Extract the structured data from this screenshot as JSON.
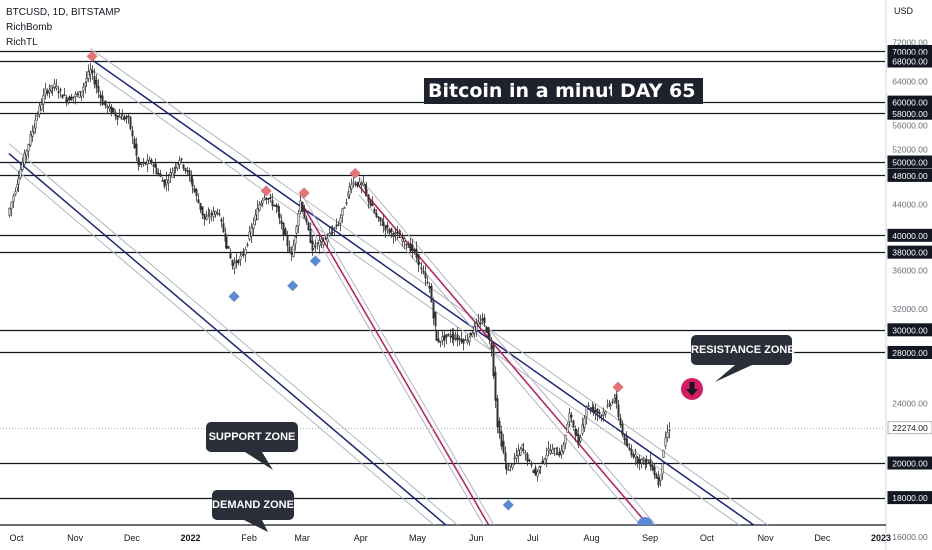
{
  "header": {
    "symbol": "BTCUSD, 1D, BITSTAMP",
    "indicator_1": "RichBomb",
    "indicator_2": "RichTL"
  },
  "annotations": {
    "title": "Bitcoin in a minute",
    "day": "DAY 65",
    "resistance_label": "RESISTANCE ZONE",
    "support_label": "SUPPORT ZONE",
    "demand_label": "DEMAND ZONE"
  },
  "colors": {
    "up_candle": "#333333",
    "down_candle": "#333333",
    "channel_blue": "#1a237e",
    "channel_red": "#c2185b",
    "channel_gray": "#b2b5be",
    "level_line": "#131722",
    "signal_sell": "#e57373",
    "signal_buy": "#5c8bd6",
    "callout_bg": "#2a2e39",
    "resistance_marker": "#d81b60"
  },
  "chart_data": {
    "type": "candlestick",
    "symbol": "BTCUSD",
    "exchange": "BITSTAMP",
    "interval": "1D",
    "price_axis": {
      "unit_label": "USD",
      "scale": "log",
      "range": [
        15000,
        73000
      ],
      "tick_labels": [
        72000,
        70000,
        68000,
        64000,
        60000,
        58000,
        56000,
        52000,
        50000,
        48000,
        44000,
        40000,
        38000,
        36000,
        32000,
        30000,
        28000,
        24000,
        22274,
        20000,
        18000,
        16000
      ]
    },
    "time_axis": {
      "tick_labels": [
        "Oct",
        "Nov",
        "Dec",
        "2022",
        "Feb",
        "Mar",
        "Apr",
        "May",
        "Jun",
        "Jul",
        "Aug",
        "Sep",
        "Oct",
        "Nov",
        "Dec",
        "2023"
      ]
    },
    "last_price": 22274,
    "horizontal_levels": [
      70000,
      68000,
      60000,
      58000,
      50000,
      48000,
      40000,
      38000,
      30000,
      28000,
      20000,
      18000
    ],
    "price_path": [
      {
        "date": "2021-09-27",
        "close": 42500
      },
      {
        "date": "2021-10-03",
        "close": 48000
      },
      {
        "date": "2021-10-10",
        "close": 55000
      },
      {
        "date": "2021-10-17",
        "close": 62000
      },
      {
        "date": "2021-10-22",
        "close": 63000
      },
      {
        "date": "2021-10-28",
        "close": 60500
      },
      {
        "date": "2021-11-04",
        "close": 61500
      },
      {
        "date": "2021-11-10",
        "close": 66000
      },
      {
        "date": "2021-11-16",
        "close": 60000
      },
      {
        "date": "2021-11-24",
        "close": 57500
      },
      {
        "date": "2021-11-30",
        "close": 57000
      },
      {
        "date": "2021-12-05",
        "close": 49500
      },
      {
        "date": "2021-12-12",
        "close": 50000
      },
      {
        "date": "2021-12-19",
        "close": 46800
      },
      {
        "date": "2021-12-27",
        "close": 50500
      },
      {
        "date": "2022-01-02",
        "close": 47300
      },
      {
        "date": "2022-01-09",
        "close": 42000
      },
      {
        "date": "2022-01-16",
        "close": 43100
      },
      {
        "date": "2022-01-24",
        "close": 36500
      },
      {
        "date": "2022-01-30",
        "close": 37800
      },
      {
        "date": "2022-02-07",
        "close": 44000
      },
      {
        "date": "2022-02-10",
        "close": 45200
      },
      {
        "date": "2022-02-16",
        "close": 43500
      },
      {
        "date": "2022-02-24",
        "close": 37500
      },
      {
        "date": "2022-03-01",
        "close": 44400
      },
      {
        "date": "2022-03-07",
        "close": 38500
      },
      {
        "date": "2022-03-14",
        "close": 39500
      },
      {
        "date": "2022-03-21",
        "close": 41500
      },
      {
        "date": "2022-03-28",
        "close": 47100
      },
      {
        "date": "2022-04-03",
        "close": 46500
      },
      {
        "date": "2022-04-10",
        "close": 42200
      },
      {
        "date": "2022-04-17",
        "close": 40500
      },
      {
        "date": "2022-04-24",
        "close": 39500
      },
      {
        "date": "2022-04-30",
        "close": 38000
      },
      {
        "date": "2022-05-08",
        "close": 34000
      },
      {
        "date": "2022-05-12",
        "close": 29000
      },
      {
        "date": "2022-05-19",
        "close": 29500
      },
      {
        "date": "2022-05-27",
        "close": 29000
      },
      {
        "date": "2022-06-05",
        "close": 31000
      },
      {
        "date": "2022-06-10",
        "close": 28500
      },
      {
        "date": "2022-06-13",
        "close": 22500
      },
      {
        "date": "2022-06-18",
        "close": 19500
      },
      {
        "date": "2022-06-26",
        "close": 21000
      },
      {
        "date": "2022-07-03",
        "close": 19300
      },
      {
        "date": "2022-07-10",
        "close": 20800
      },
      {
        "date": "2022-07-17",
        "close": 20600
      },
      {
        "date": "2022-07-21",
        "close": 23200
      },
      {
        "date": "2022-07-26",
        "close": 21200
      },
      {
        "date": "2022-07-30",
        "close": 23800
      },
      {
        "date": "2022-08-07",
        "close": 23200
      },
      {
        "date": "2022-08-14",
        "close": 24400
      },
      {
        "date": "2022-08-19",
        "close": 21300
      },
      {
        "date": "2022-08-26",
        "close": 20200
      },
      {
        "date": "2022-09-02",
        "close": 20000
      },
      {
        "date": "2022-09-06",
        "close": 18800
      },
      {
        "date": "2022-09-10",
        "close": 21600
      },
      {
        "date": "2022-09-12",
        "close": 22274
      }
    ],
    "signals": [
      {
        "type": "sell",
        "date": "2021-11-10",
        "price": 69000
      },
      {
        "type": "buy",
        "date": "2022-01-24",
        "price": 33200
      },
      {
        "type": "sell",
        "date": "2022-02-10",
        "price": 45800
      },
      {
        "type": "buy",
        "date": "2022-02-24",
        "price": 34300
      },
      {
        "type": "sell",
        "date": "2022-03-02",
        "price": 45500
      },
      {
        "type": "buy",
        "date": "2022-03-08",
        "price": 37000
      },
      {
        "type": "sell",
        "date": "2022-03-29",
        "price": 48300
      },
      {
        "type": "buy",
        "date": "2022-06-18",
        "price": 17600
      },
      {
        "type": "sell",
        "date": "2022-08-15",
        "price": 25200
      }
    ],
    "trend_lines": [
      {
        "name": "channel-upper",
        "color": "blue",
        "start": {
          "date": "2021-11-09",
          "price": 68500
        },
        "end": {
          "date": "2022-11-25",
          "price": 14650
        }
      },
      {
        "name": "channel-lower",
        "color": "blue",
        "start": {
          "date": "2021-09-27",
          "price": 51300
        },
        "end": {
          "date": "2022-06-10",
          "price": 14650
        }
      },
      {
        "name": "steep-channel-upper",
        "color": "red",
        "start": {
          "date": "2022-03-31",
          "price": 46500
        },
        "end": {
          "date": "2022-09-18",
          "price": 14650
        }
      },
      {
        "name": "steep-channel-lower",
        "color": "red",
        "start": {
          "date": "2022-03-01",
          "price": 44000
        },
        "end": {
          "date": "2022-06-20",
          "price": 14650
        }
      }
    ]
  }
}
